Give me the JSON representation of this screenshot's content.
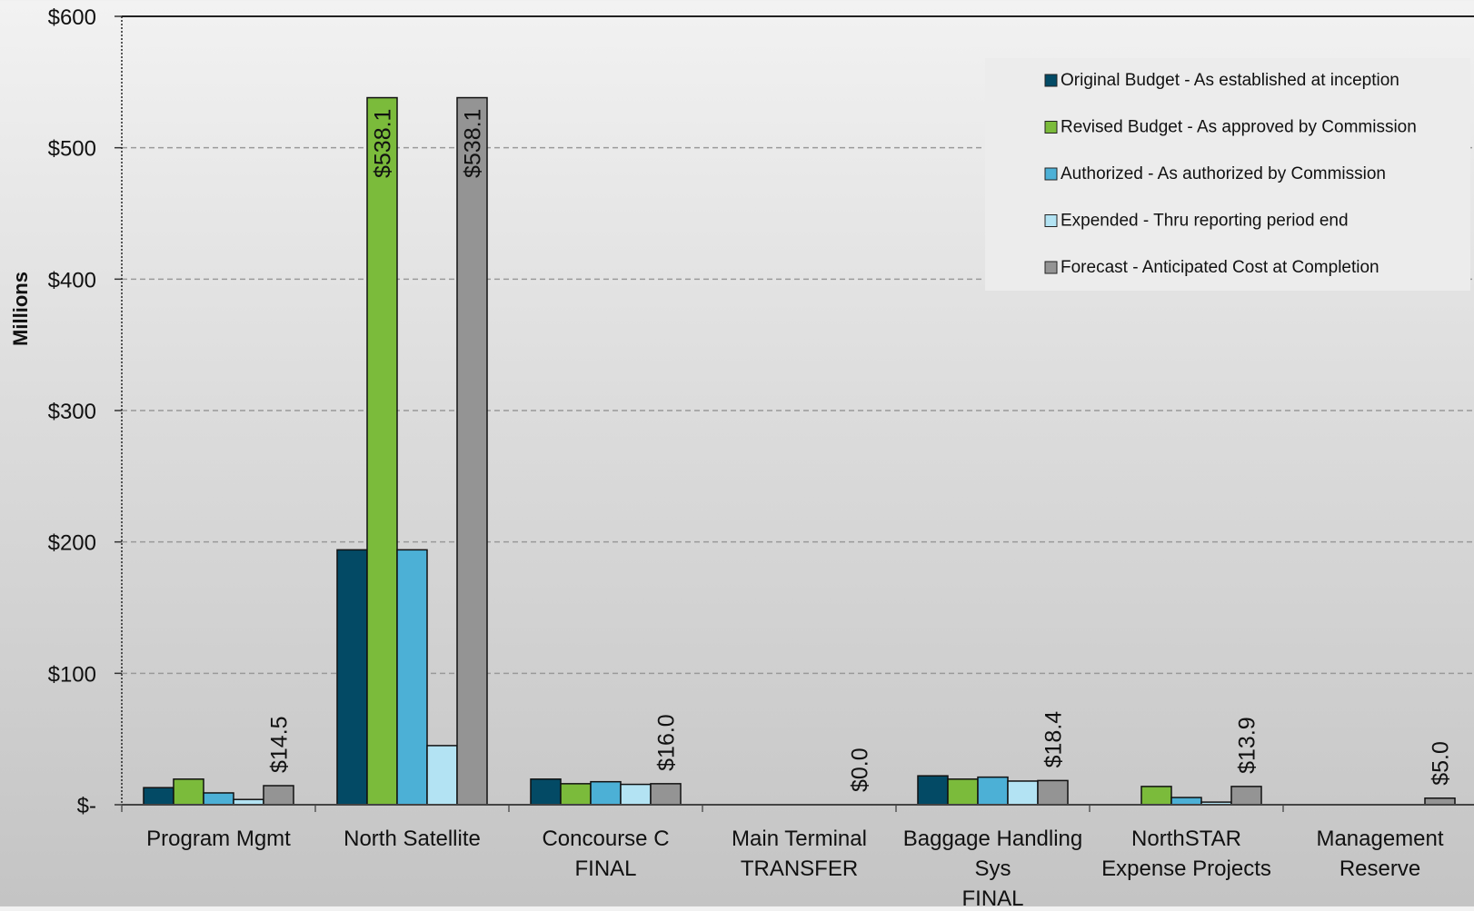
{
  "chart_data": {
    "type": "bar",
    "ylabel": "Millions",
    "ylim": [
      0,
      600
    ],
    "yticks": [
      {
        "value": 0,
        "label": "$-"
      },
      {
        "value": 100,
        "label": "$100"
      },
      {
        "value": 200,
        "label": "$200"
      },
      {
        "value": 300,
        "label": "$300"
      },
      {
        "value": 400,
        "label": "$400"
      },
      {
        "value": 500,
        "label": "$500"
      },
      {
        "value": 600,
        "label": "$600"
      }
    ],
    "grid": true,
    "legend_position": "top-right",
    "categories": [
      [
        "Program Mgmt"
      ],
      [
        "North Satellite"
      ],
      [
        "Concourse C",
        "FINAL"
      ],
      [
        "Main Terminal",
        "TRANSFER"
      ],
      [
        "Baggage Handling",
        "Sys",
        "FINAL"
      ],
      [
        "NorthSTAR",
        "Expense Projects"
      ],
      [
        "Management",
        "Reserve"
      ]
    ],
    "series": [
      {
        "name": "Original Budget - As established at inception",
        "color": "#034a65",
        "values": [
          13,
          194,
          19.5,
          0,
          22,
          0,
          0
        ]
      },
      {
        "name": "Revised Budget - As approved by Commission",
        "color": "#7bbb3b",
        "values": [
          19.5,
          538.1,
          16,
          0,
          19.5,
          13.9,
          0
        ]
      },
      {
        "name": "Authorized - As authorized by Commission",
        "color": "#4cb0d6",
        "values": [
          9,
          194,
          17.5,
          0,
          21,
          5.5,
          0
        ]
      },
      {
        "name": "Expended - Thru reporting period end",
        "color": "#b3e3f3",
        "values": [
          4,
          45,
          15.5,
          0,
          18,
          2,
          0
        ]
      },
      {
        "name": "Forecast - Anticipated Cost at Completion",
        "color": "#949494",
        "values": [
          14.5,
          538.1,
          16.0,
          0.0,
          18.4,
          13.9,
          5.0
        ]
      }
    ],
    "data_labels": [
      {
        "series": 4,
        "category": 0,
        "text": "$14.5"
      },
      {
        "series": 1,
        "category": 1,
        "text": "$538.1",
        "inside": true
      },
      {
        "series": 4,
        "category": 1,
        "text": "$538.1",
        "inside": true
      },
      {
        "series": 4,
        "category": 2,
        "text": "$16.0"
      },
      {
        "series": 4,
        "category": 3,
        "text": "$0.0"
      },
      {
        "series": 4,
        "category": 4,
        "text": "$18.4"
      },
      {
        "series": 4,
        "category": 5,
        "text": "$13.9"
      },
      {
        "series": 4,
        "category": 6,
        "text": "$5.0"
      }
    ]
  }
}
